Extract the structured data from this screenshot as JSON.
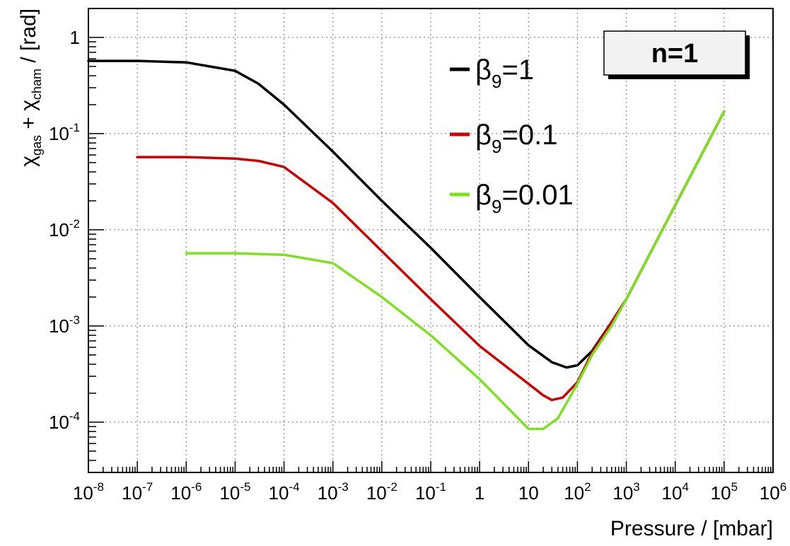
{
  "chart_data": {
    "type": "line",
    "title": "n=1",
    "xlabel": "Pressure / [mbar]",
    "ylabel": {
      "parts": [
        "χ",
        "gas",
        " + χ",
        "cham",
        " / [rad]"
      ]
    },
    "x_scale": "log",
    "y_scale": "log",
    "xlim": [
      1e-08,
      1000000.0
    ],
    "ylim": [
      3e-05,
      2
    ],
    "grid": true,
    "legend_position": "top-center",
    "x_ticks": [
      {
        "mant": "10",
        "exp": "-8",
        "value": 1e-08
      },
      {
        "mant": "10",
        "exp": "-7",
        "value": 1e-07
      },
      {
        "mant": "10",
        "exp": "-6",
        "value": 1e-06
      },
      {
        "mant": "10",
        "exp": "-5",
        "value": 1e-05
      },
      {
        "mant": "10",
        "exp": "-4",
        "value": 0.0001
      },
      {
        "mant": "10",
        "exp": "-3",
        "value": 0.001
      },
      {
        "mant": "10",
        "exp": "-2",
        "value": 0.01
      },
      {
        "mant": "10",
        "exp": "-1",
        "value": 0.1
      },
      {
        "mant": "1",
        "exp": "",
        "value": 1
      },
      {
        "mant": "10",
        "exp": "",
        "value": 10
      },
      {
        "mant": "10",
        "exp": "2",
        "value": 100
      },
      {
        "mant": "10",
        "exp": "3",
        "value": 1000.0
      },
      {
        "mant": "10",
        "exp": "4",
        "value": 10000.0
      },
      {
        "mant": "10",
        "exp": "5",
        "value": 100000.0
      },
      {
        "mant": "10",
        "exp": "6",
        "value": 1000000.0
      }
    ],
    "y_ticks": [
      {
        "mant": "1",
        "exp": "",
        "value": 1
      },
      {
        "mant": "10",
        "exp": "-1",
        "value": 0.1
      },
      {
        "mant": "10",
        "exp": "-2",
        "value": 0.01
      },
      {
        "mant": "10",
        "exp": "-3",
        "value": 0.001
      },
      {
        "mant": "10",
        "exp": "-4",
        "value": 0.0001
      }
    ],
    "series": [
      {
        "name": "β9=1",
        "label": {
          "sym": "β",
          "sub": "9",
          "rest": "=1"
        },
        "color": "#000000",
        "points": [
          [
            1e-08,
            0.57
          ],
          [
            1e-07,
            0.57
          ],
          [
            1e-06,
            0.55
          ],
          [
            1e-05,
            0.45
          ],
          [
            3e-05,
            0.33
          ],
          [
            0.0001,
            0.2
          ],
          [
            0.001,
            0.065
          ],
          [
            0.01,
            0.02
          ],
          [
            0.1,
            0.0065
          ],
          [
            1,
            0.002
          ],
          [
            10,
            0.00063
          ],
          [
            30,
            0.00042
          ],
          [
            60,
            0.00037
          ],
          [
            100,
            0.00039
          ],
          [
            200,
            0.00055
          ],
          [
            500,
            0.0011
          ],
          [
            1000,
            0.0019
          ],
          [
            10000.0,
            0.018
          ],
          [
            100000.0,
            0.17
          ]
        ]
      },
      {
        "name": "β9=0.1",
        "label": {
          "sym": "β",
          "sub": "9",
          "rest": "=0.1"
        },
        "color": "#cc0000",
        "points": [
          [
            1e-07,
            0.057
          ],
          [
            1e-06,
            0.057
          ],
          [
            1e-05,
            0.055
          ],
          [
            3e-05,
            0.052
          ],
          [
            0.0001,
            0.045
          ],
          [
            0.001,
            0.019
          ],
          [
            0.01,
            0.006
          ],
          [
            0.1,
            0.0019
          ],
          [
            1,
            0.00062
          ],
          [
            10,
            0.00025
          ],
          [
            20,
            0.00019
          ],
          [
            30,
            0.00017
          ],
          [
            50,
            0.00018
          ],
          [
            100,
            0.00026
          ],
          [
            200,
            0.00053
          ],
          [
            500,
            0.0011
          ],
          [
            1000,
            0.0019
          ],
          [
            10000.0,
            0.018
          ],
          [
            100000.0,
            0.17
          ]
        ]
      },
      {
        "name": "β9=0.01",
        "label": {
          "sym": "β",
          "sub": "9",
          "rest": "=0.01"
        },
        "color": "#7ee020",
        "points": [
          [
            1e-06,
            0.0057
          ],
          [
            1e-05,
            0.0057
          ],
          [
            0.0001,
            0.0055
          ],
          [
            0.001,
            0.0045
          ],
          [
            0.01,
            0.002
          ],
          [
            0.1,
            0.0008
          ],
          [
            1,
            0.00028
          ],
          [
            10,
            8.5e-05
          ],
          [
            20,
            8.5e-05
          ],
          [
            40,
            0.00011
          ],
          [
            100,
            0.00025
          ],
          [
            200,
            0.0005
          ],
          [
            500,
            0.001
          ],
          [
            1000,
            0.0019
          ],
          [
            10000.0,
            0.018
          ],
          [
            100000.0,
            0.17
          ]
        ]
      }
    ]
  }
}
